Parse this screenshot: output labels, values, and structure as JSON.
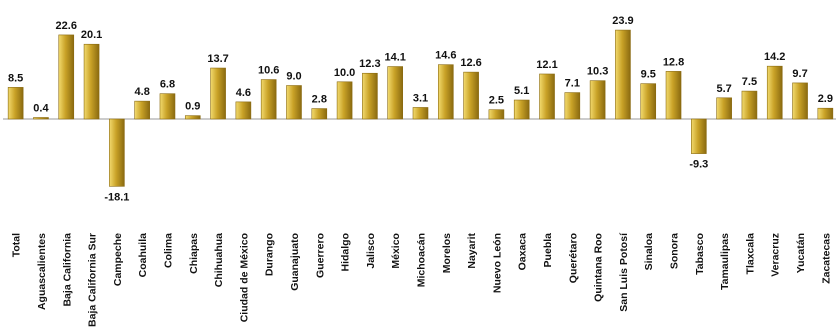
{
  "chart_data": {
    "type": "bar",
    "title": "",
    "xlabel": "",
    "ylabel": "",
    "ylim": [
      -20,
      25
    ],
    "grid": false,
    "legend": "none",
    "categories": [
      "Total",
      "Aguascalientes",
      "Baja California",
      "Baja California Sur",
      "Campeche",
      "Coahuila",
      "Colima",
      "Chiapas",
      "Chihuahua",
      "Ciudad de México",
      "Durango",
      "Guanajuato",
      "Guerrero",
      "Hidalgo",
      "Jalisco",
      "México",
      "Michoacán",
      "Morelos",
      "Nayarit",
      "Nuevo León",
      "Oaxaca",
      "Puebla",
      "Querétaro",
      "Quintana Roo",
      "San Luis Potosí",
      "Sinaloa",
      "Sonora",
      "Tabasco",
      "Tamaulipas",
      "Tlaxcala",
      "Veracruz",
      "Yucatán",
      "Zacatecas"
    ],
    "values": [
      8.5,
      0.4,
      22.6,
      20.1,
      -18.1,
      4.8,
      6.8,
      0.9,
      13.7,
      4.6,
      10.6,
      9.0,
      2.8,
      10.0,
      12.3,
      14.1,
      3.1,
      14.6,
      12.6,
      2.5,
      5.1,
      12.1,
      7.1,
      10.3,
      23.9,
      9.5,
      12.8,
      -9.3,
      5.7,
      7.5,
      14.2,
      9.7,
      2.9
    ],
    "value_labels": [
      "8.5",
      "0.4",
      "22.6",
      "20.1",
      "-18.1",
      "4.8",
      "6.8",
      "0.9",
      "13.7",
      "4.6",
      "10.6",
      "9.0",
      "2.8",
      "10.0",
      "12.3",
      "14.1",
      "3.1",
      "14.6",
      "12.6",
      "2.5",
      "5.1",
      "12.1",
      "7.1",
      "10.3",
      "23.9",
      "9.5",
      "12.8",
      "-9.3",
      "5.7",
      "7.5",
      "14.2",
      "9.7",
      "2.9"
    ],
    "colors": {
      "bar_light": "#f2da6e",
      "bar_mid": "#c9a227",
      "bar_dark": "#8a6a10",
      "axis": "#9a9a9a"
    }
  }
}
